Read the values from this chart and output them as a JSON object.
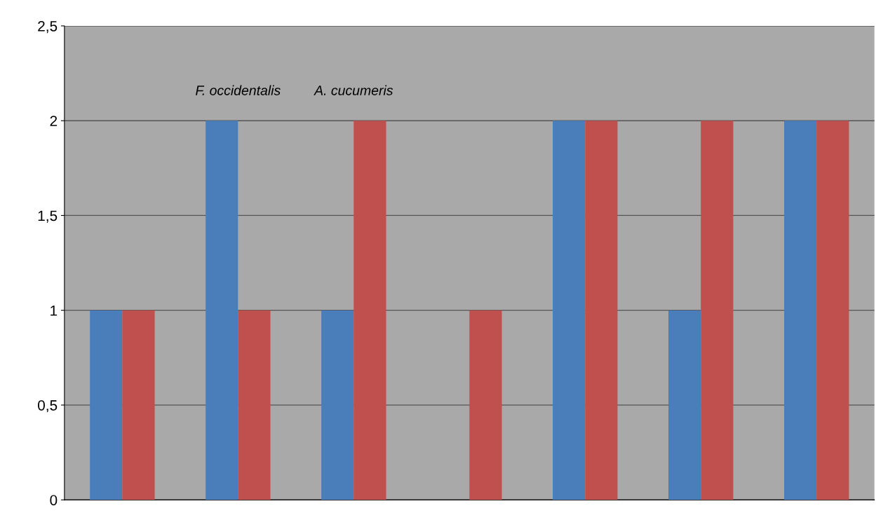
{
  "chart_data": {
    "type": "bar",
    "categories": [
      null,
      null,
      null,
      null,
      null,
      null,
      null
    ],
    "series": [
      {
        "color": "#4a7ebb",
        "values": [
          1,
          2,
          1,
          0,
          2,
          1,
          2
        ]
      },
      {
        "color": "#c0504d",
        "values": [
          1,
          1,
          2,
          1,
          2,
          2,
          2
        ]
      }
    ],
    "annotations": [
      "F. occidentalis",
      "A. cucumeris"
    ],
    "ylim": [
      0,
      2.5
    ],
    "yticks": [
      0,
      {
        "value": 0.5,
        "label": "0,5"
      },
      1,
      {
        "value": 1.5,
        "label": "1,5"
      },
      2,
      {
        "value": 2.5,
        "label": "2,5"
      }
    ],
    "grid": "y"
  }
}
